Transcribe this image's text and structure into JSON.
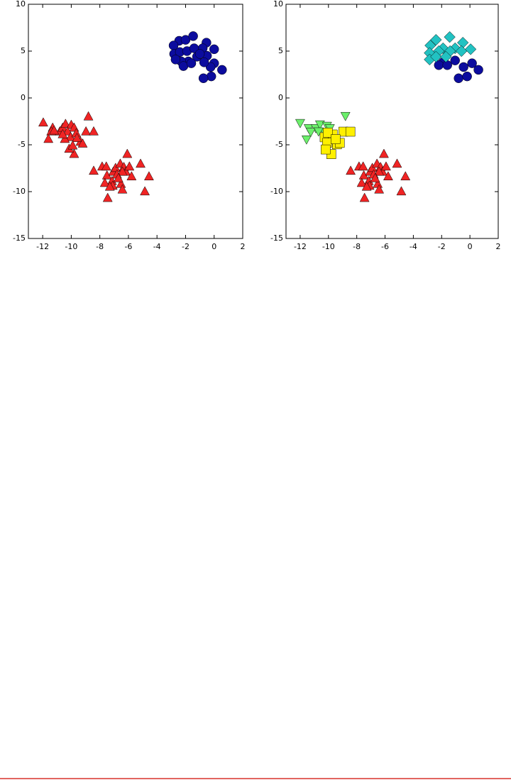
{
  "chart_data": [
    {
      "type": "scatter",
      "xlim": [
        -13,
        2
      ],
      "ylim": [
        -15,
        10
      ],
      "xticks": [
        -12,
        -10,
        -8,
        -6,
        -4,
        -2,
        0,
        2
      ],
      "yticks": [
        -15,
        -10,
        -5,
        0,
        5,
        10
      ],
      "series": [
        {
          "color": "#0c0c9e",
          "marker": "o",
          "x": [
            -2.45,
            -2.84,
            -2.0,
            -1.47,
            -0.54,
            0.0,
            -2.8,
            -2.4,
            -1.9,
            -1.4,
            -0.8,
            -0.5,
            0.0,
            0.55,
            -0.25,
            -0.7,
            -1.2,
            -1.8,
            -2.3,
            -2.7,
            -2.15,
            -1.6,
            -0.2,
            -0.75,
            -1.0
          ],
          "values": [
            6.1,
            5.6,
            6.2,
            6.6,
            5.9,
            5.2,
            4.7,
            4.9,
            5.0,
            5.3,
            5.3,
            4.5,
            3.7,
            3.0,
            3.3,
            3.8,
            4.4,
            3.9,
            3.9,
            4.1,
            3.4,
            3.7,
            2.3,
            2.1,
            4.7
          ]
        },
        {
          "color": "#f02424",
          "marker": "^",
          "x": [
            -11.96,
            -11.3,
            -11.4,
            -11.6,
            -10.8,
            -10.6,
            -10.4,
            -10.0,
            -9.8,
            -10.25,
            -10.05,
            -9.65,
            -9.35,
            -9.2,
            -8.97,
            -8.8,
            -8.43,
            -9.8,
            -10.15,
            -10.45,
            -10.6,
            -11.2,
            -9.6,
            -9.9,
            -8.43,
            -7.84,
            -7.55,
            -7.5,
            -7.06,
            -6.9,
            -6.57,
            -6.32,
            -6.08,
            -6.18,
            -5.78,
            -5.93,
            -6.42,
            -6.8,
            -7.15,
            -7.1,
            -6.52,
            -6.42,
            -7.45,
            -7.65,
            -5.15,
            -4.56,
            -4.85,
            -6.7,
            -7.3
          ],
          "values": [
            -2.65,
            -3.2,
            -3.6,
            -4.4,
            -3.6,
            -3.2,
            -2.8,
            -2.9,
            -3.2,
            -3.6,
            -4.2,
            -3.8,
            -4.7,
            -4.9,
            -3.6,
            -2.0,
            -3.6,
            -6.0,
            -5.45,
            -4.4,
            -3.9,
            -3.5,
            -4.3,
            -5.1,
            -7.8,
            -7.35,
            -7.35,
            -8.3,
            -7.9,
            -7.5,
            -7.05,
            -7.4,
            -6.0,
            -7.9,
            -8.4,
            -7.35,
            -7.9,
            -8.2,
            -8.9,
            -9.4,
            -9.2,
            -9.8,
            -10.7,
            -9.1,
            -7.05,
            -8.4,
            -10.0,
            -8.6,
            -9.5
          ]
        }
      ]
    },
    {
      "type": "scatter",
      "xlim": [
        -13,
        2
      ],
      "ylim": [
        -15,
        10
      ],
      "xticks": [
        -12,
        -10,
        -8,
        -6,
        -4,
        -2,
        0,
        2
      ],
      "yticks": [
        -15,
        -10,
        -5,
        0,
        5,
        10
      ],
      "series": [
        {
          "color": "#0c0c9e",
          "marker": "o",
          "x": [
            -0.8,
            -0.2,
            0.6,
            0.15,
            -0.45,
            -1.05,
            -1.9,
            -2.2,
            -1.6
          ],
          "values": [
            2.1,
            2.3,
            3.0,
            3.7,
            3.3,
            4.0,
            3.8,
            3.5,
            3.5
          ]
        },
        {
          "color": "#22c2c2",
          "marker": "D",
          "x": [
            -2.4,
            -1.43,
            -2.8,
            -0.5,
            -1.9,
            -1.05,
            0.05,
            -2.85,
            -2.2,
            -1.4,
            -0.6,
            -2.85,
            -2.4,
            -1.7
          ],
          "values": [
            6.2,
            6.5,
            5.6,
            5.9,
            5.3,
            5.3,
            5.2,
            4.8,
            5.0,
            5.0,
            5.0,
            4.1,
            4.4,
            4.4
          ]
        },
        {
          "color": "#6cf06c",
          "marker": "v",
          "x": [
            -12.0,
            -11.4,
            -11.55,
            -10.9,
            -10.6,
            -10.1,
            -9.9,
            -10.3,
            -8.8,
            -11.25,
            -10.7
          ],
          "values": [
            -2.65,
            -3.2,
            -4.4,
            -3.2,
            -2.8,
            -2.95,
            -3.2,
            -3.6,
            -1.9,
            -3.6,
            -3.55
          ]
        },
        {
          "color": "#fff000",
          "marker": "s",
          "x": [
            -10.27,
            -9.7,
            -10.1,
            -9.4,
            -9.2,
            -9.8,
            -10.2,
            -8.95,
            -8.45,
            -10.05,
            -9.5
          ],
          "values": [
            -4.2,
            -3.9,
            -4.8,
            -4.95,
            -4.8,
            -6.0,
            -5.5,
            -3.6,
            -3.6,
            -3.7,
            -4.4
          ]
        },
        {
          "color": "#f02424",
          "marker": "^",
          "x": [
            -8.43,
            -7.84,
            -7.55,
            -7.5,
            -7.06,
            -6.9,
            -6.57,
            -6.32,
            -6.08,
            -6.18,
            -5.78,
            -5.93,
            -6.42,
            -6.8,
            -7.15,
            -7.1,
            -6.52,
            -6.42,
            -7.45,
            -7.65,
            -5.15,
            -4.56,
            -4.85,
            -6.7,
            -7.3
          ],
          "values": [
            -7.8,
            -7.35,
            -7.35,
            -8.3,
            -7.9,
            -7.5,
            -7.05,
            -7.4,
            -6.0,
            -7.9,
            -8.4,
            -7.35,
            -7.9,
            -8.2,
            -8.9,
            -9.4,
            -9.2,
            -9.8,
            -10.7,
            -9.1,
            -7.05,
            -8.4,
            -10.0,
            -8.6,
            -9.5
          ]
        }
      ]
    }
  ]
}
